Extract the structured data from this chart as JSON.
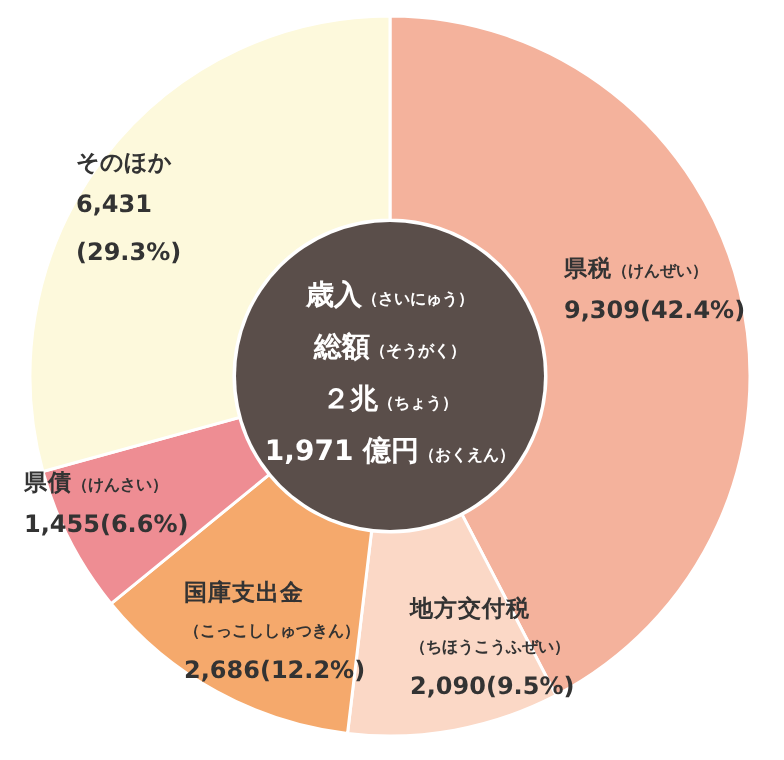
{
  "chart_data": {
    "type": "donut",
    "title": "歳入（さいにゅう）総額（そうがく）２兆（ちょう）1,971 億円（おくえん）",
    "categories": [
      "県税（けんぜい）",
      "地方交付税（ちほうこうふぜい）",
      "国庫支出金（こっこししゅつきん）",
      "県債（けんさい）",
      "そのほか"
    ],
    "values": [
      9309,
      2090,
      2686,
      1455,
      6431
    ],
    "value_labels": [
      "9,309(42.4%)",
      "2,090(9.5%)",
      "2,686(12.2%)",
      "1,455(6.6%)",
      "6,431\n(29.3%)"
    ],
    "colors": [
      "#f4b29c",
      "#fbd8c6",
      "#f5a96c",
      "#ee8d93",
      "#fdf9dc"
    ]
  }
}
